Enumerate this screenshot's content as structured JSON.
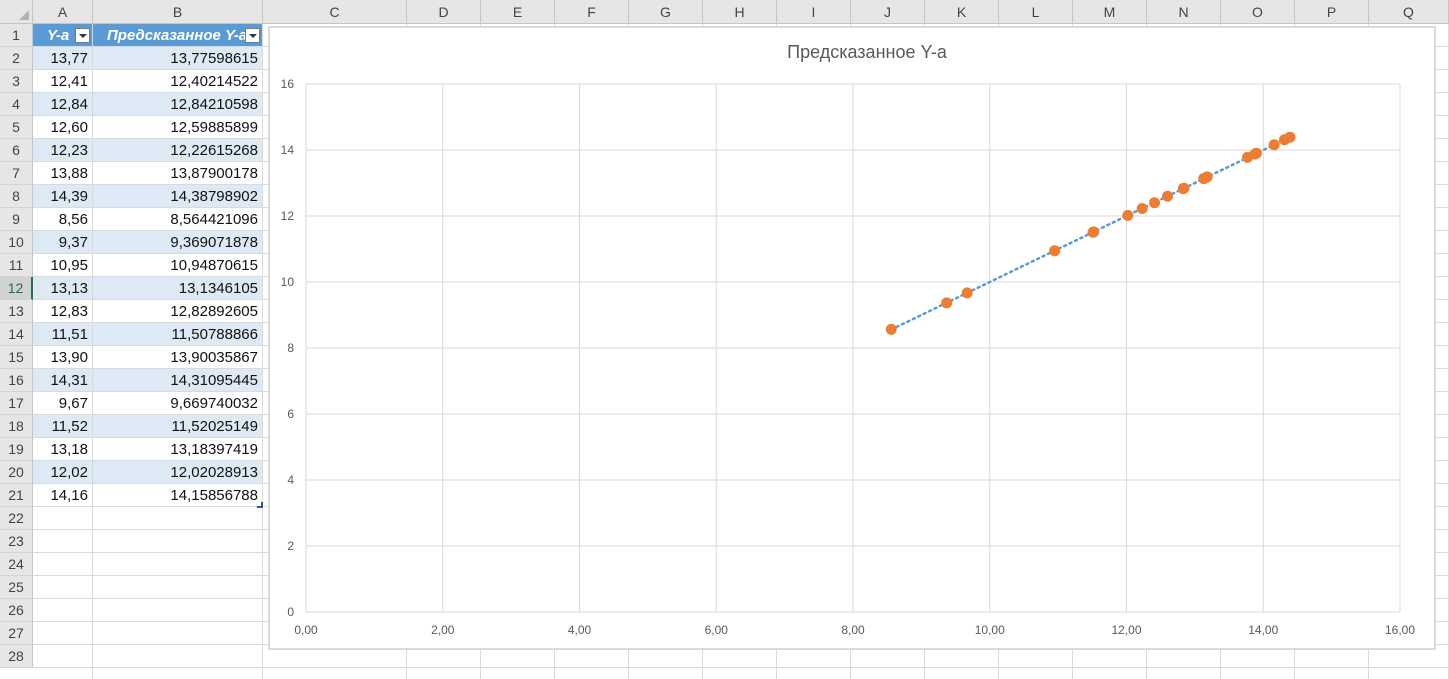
{
  "spreadsheet": {
    "columns": [
      "A",
      "B",
      "C",
      "D",
      "E",
      "F",
      "G",
      "H",
      "I",
      "J",
      "K",
      "L",
      "M",
      "N",
      "O",
      "P",
      "Q"
    ],
    "rows": [
      "1",
      "2",
      "3",
      "4",
      "5",
      "6",
      "7",
      "8",
      "9",
      "10",
      "11",
      "12",
      "13",
      "14",
      "15",
      "16",
      "17",
      "18",
      "19",
      "20",
      "21",
      "22",
      "23",
      "24",
      "25",
      "26",
      "27",
      "28"
    ],
    "active_row": "12",
    "table": {
      "headers": [
        "Y-a",
        "Предсказанное Y-a"
      ],
      "col_a": [
        "13,77",
        "12,41",
        "12,84",
        "12,60",
        "12,23",
        "13,88",
        "14,39",
        "8,56",
        "9,37",
        "10,95",
        "13,13",
        "12,83",
        "11,51",
        "13,90",
        "14,31",
        "9,67",
        "11,52",
        "13,18",
        "12,02",
        "14,16"
      ],
      "col_b": [
        "13,77598615",
        "12,40214522",
        "12,84210598",
        "12,59885899",
        "12,22615268",
        "13,87900178",
        "14,38798902",
        "8,564421096",
        "9,369071878",
        "10,94870615",
        "13,1346105",
        "12,82892605",
        "11,50788866",
        "13,90035867",
        "14,31095445",
        "9,669740032",
        "11,52025149",
        "13,18397419",
        "12,02028913",
        "14,15856788"
      ]
    }
  },
  "chart_data": {
    "type": "scatter",
    "title": "Предсказанное Y-a",
    "xlabel": "",
    "ylabel": "",
    "xlim": [
      0,
      16
    ],
    "ylim": [
      0,
      16
    ],
    "x_ticks": [
      "0,00",
      "2,00",
      "4,00",
      "6,00",
      "8,00",
      "10,00",
      "12,00",
      "14,00",
      "16,00"
    ],
    "y_ticks": [
      "0",
      "2",
      "4",
      "6",
      "8",
      "10",
      "12",
      "14",
      "16"
    ],
    "grid": true,
    "legend": "none",
    "marker_color": "#ed7d31",
    "trendline": {
      "style": "dotted",
      "color": "#5b9bd5",
      "type": "linear"
    },
    "series": [
      {
        "x": [
          13.77,
          12.41,
          12.84,
          12.6,
          12.23,
          13.88,
          14.39,
          8.56,
          9.37,
          10.95,
          13.13,
          12.83,
          11.51,
          13.9,
          14.31,
          9.67,
          11.52,
          13.18,
          12.02,
          14.16
        ],
        "y": [
          13.77598615,
          12.40214522,
          12.84210598,
          12.59885899,
          12.22615268,
          13.87900178,
          14.38798902,
          8.564421096,
          9.369071878,
          10.94870615,
          13.1346105,
          12.82892605,
          11.50788866,
          13.90035867,
          14.31095445,
          9.669740032,
          11.52025149,
          13.18397419,
          12.02028913,
          14.15856788
        ]
      }
    ]
  }
}
